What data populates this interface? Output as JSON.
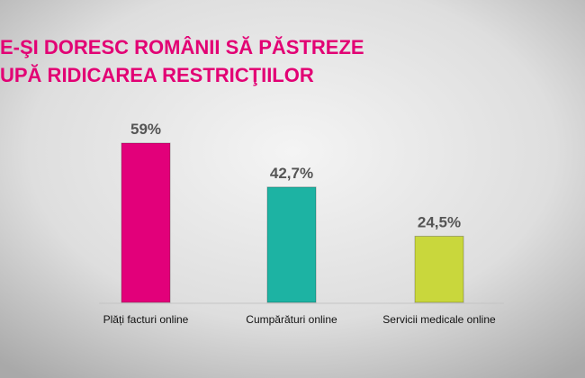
{
  "chart_data": {
    "type": "bar",
    "title_lines": [
      "E-ŞI DORESC ROMÂNII SĂ PĂSTREZE",
      "UPĂ RIDICAREA RESTRICŢIILOR"
    ],
    "categories": [
      "Plăți facturi online",
      "Cumpărături online",
      "Servicii medicale online"
    ],
    "values": [
      59,
      42.7,
      24.5
    ],
    "value_labels": [
      "59%",
      "42,7%",
      "24,5%"
    ],
    "colors": [
      "#e2007a",
      "#1db3a3",
      "#c9d73c"
    ]
  }
}
